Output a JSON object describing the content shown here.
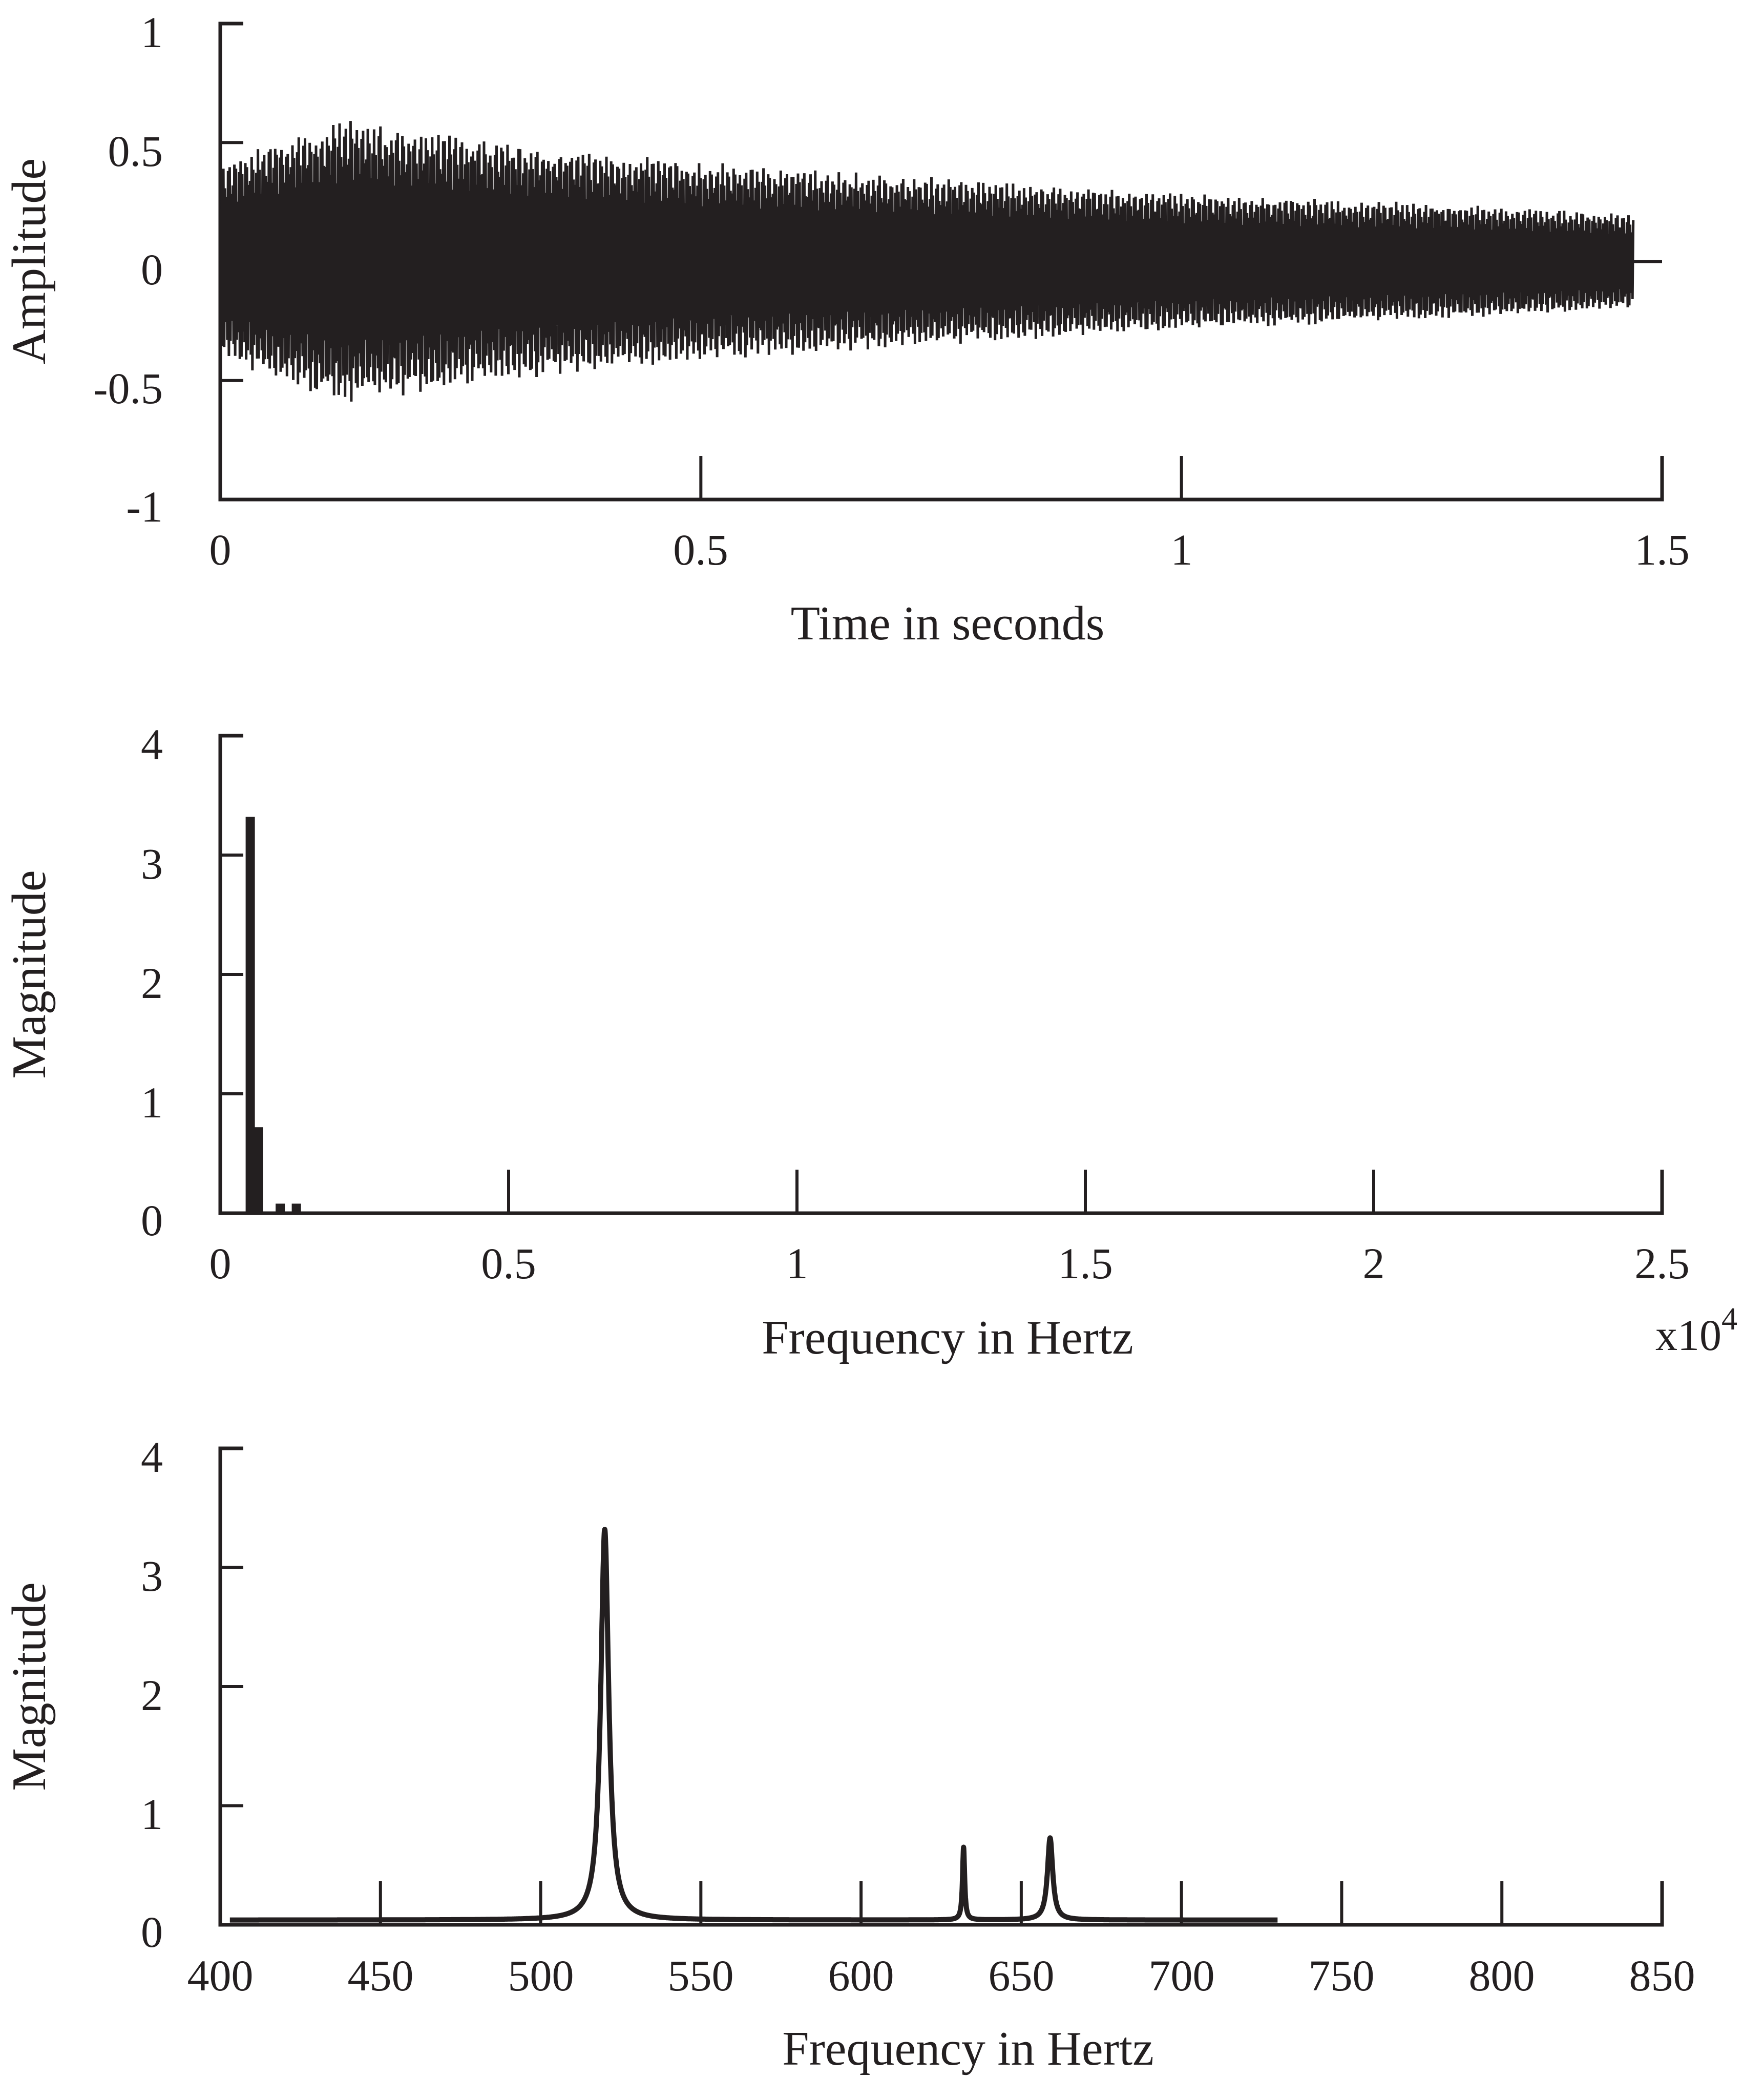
{
  "chart_data": [
    {
      "type": "line",
      "id": "time-domain",
      "xlabel": "Time in seconds",
      "ylabel": "Amplitude",
      "xlim": [
        0,
        1.5
      ],
      "ylim": [
        -1,
        1
      ],
      "xticks": [
        "0",
        "0.5",
        "1",
        "1.5"
      ],
      "yticks": [
        "1",
        "0.5",
        "0",
        "-0.5",
        "-1"
      ],
      "grid": false,
      "series": [
        {
          "color": "#231f20",
          "kind": "decaying-oscillation",
          "duration": 1.47,
          "envelope": [
            {
              "t": 0.0,
              "amp": 0.4
            },
            {
              "t": 0.05,
              "amp": 0.5
            },
            {
              "t": 0.13,
              "amp": 0.6
            },
            {
              "t": 0.3,
              "amp": 0.5
            },
            {
              "t": 0.5,
              "amp": 0.42
            },
            {
              "t": 0.8,
              "amp": 0.34
            },
            {
              "t": 1.0,
              "amp": 0.29
            },
            {
              "t": 1.3,
              "amp": 0.24
            },
            {
              "t": 1.47,
              "amp": 0.2
            }
          ]
        }
      ]
    },
    {
      "type": "bar",
      "id": "full-spectrum",
      "xlabel": "Frequency in Hertz",
      "ylabel": "Magnitude",
      "xlim": [
        0,
        25000
      ],
      "ylim": [
        0,
        4
      ],
      "xticks": [
        "0",
        "0.5",
        "1",
        "1.5",
        "2",
        "2.5"
      ],
      "yticks": [
        "4",
        "3",
        "2",
        "1",
        "0"
      ],
      "x_multiplier": "x10",
      "x_multiplier_exp": "4",
      "grid": false,
      "bars": [
        {
          "x": 520,
          "y": 3.32
        },
        {
          "x": 660,
          "y": 0.72
        },
        {
          "x": 1040,
          "y": 0.08
        },
        {
          "x": 1320,
          "y": 0.08
        }
      ]
    },
    {
      "type": "line",
      "id": "zoomed-spectrum",
      "xlabel": "Frequency in Hertz",
      "ylabel": "Magnitude",
      "xlim": [
        400,
        850
      ],
      "ylim": [
        0,
        4
      ],
      "xticks": [
        "400",
        "450",
        "500",
        "550",
        "600",
        "650",
        "700",
        "750",
        "800",
        "850"
      ],
      "yticks": [
        "4",
        "3",
        "2",
        "1",
        "0"
      ],
      "grid": false,
      "series": [
        {
          "color": "#231f20",
          "x_range": [
            403,
            730
          ],
          "baseline": 0.04,
          "peaks": [
            {
              "x": 520,
              "y": 3.32,
              "width": 1.5
            },
            {
              "x": 632,
              "y": 0.65,
              "width": 0.4
            },
            {
              "x": 659,
              "y": 0.73,
              "width": 1.0
            }
          ]
        }
      ]
    }
  ]
}
